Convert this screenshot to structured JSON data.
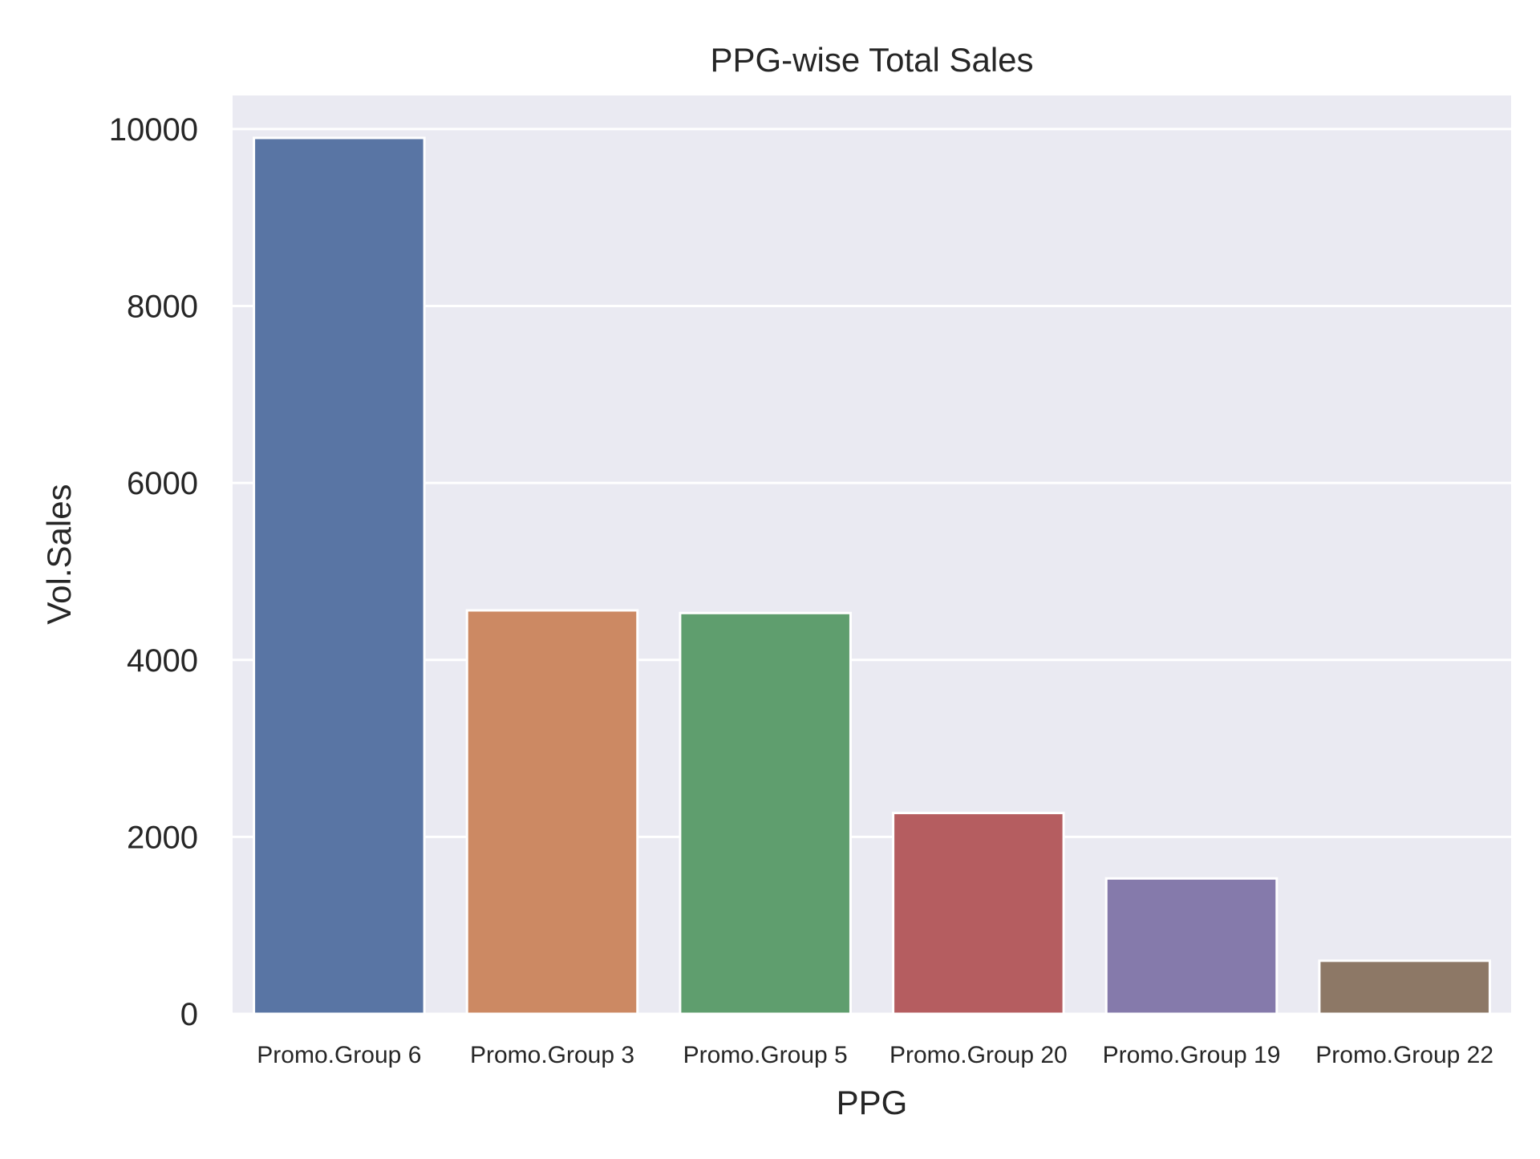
{
  "chart_data": {
    "type": "bar",
    "title": "PPG-wise Total Sales",
    "xlabel": "PPG",
    "ylabel": "Vol.Sales",
    "categories": [
      "Promo.Group 6",
      "Promo.Group 3",
      "Promo.Group 5",
      "Promo.Group 20",
      "Promo.Group 19",
      "Promo.Group 22"
    ],
    "values": [
      9900,
      4560,
      4530,
      2270,
      1530,
      600
    ],
    "colors": [
      "#5975a4",
      "#cc8963",
      "#5f9e6e",
      "#b55d60",
      "#857aab",
      "#8d7866"
    ],
    "ylim": [
      0,
      10380
    ],
    "yticks": [
      0,
      2000,
      4000,
      6000,
      8000,
      10000
    ],
    "grid": true,
    "background": "#eaeaf2",
    "legend": "none"
  }
}
